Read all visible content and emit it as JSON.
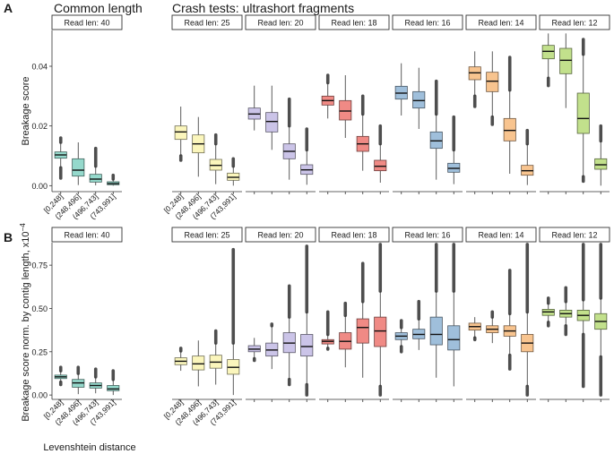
{
  "figure": {
    "panel_a_letter": "A",
    "panel_b_letter": "B",
    "common_length_title": "Common length",
    "crash_tests_title": "Crash tests: ultrashort fragments",
    "x_axis_label": "Levenshtein distance"
  },
  "chart_data": [
    {
      "type": "boxplot",
      "panel": "A",
      "ylabel": "Breakage score",
      "ylim": [
        -0.002,
        0.052
      ],
      "yticks": [
        0.0,
        0.02,
        0.04
      ],
      "ytick_labels": [
        "0.00",
        "0.02",
        "0.04"
      ],
      "categories": [
        "[0,248]",
        "(248,496]",
        "(496,743]",
        "(743,991]"
      ],
      "facets": [
        {
          "label": "Read len: 40",
          "color": "#95D9CC",
          "boxes": [
            {
              "q1": 0.0092,
              "median": 0.0103,
              "q3": 0.0113,
              "lo": 0.006,
              "hi": 0.0145,
              "olo": 0.0025,
              "ohi": 0.016
            },
            {
              "q1": 0.0032,
              "median": 0.0052,
              "q3": 0.009,
              "lo": 0.0002,
              "hi": 0.0145,
              "olo": null,
              "ohi": null
            },
            {
              "q1": 0.0012,
              "median": 0.0022,
              "q3": 0.0038,
              "lo": 0.0001,
              "hi": 0.0065,
              "olo": null,
              "ohi": 0.0125
            },
            {
              "q1": 0.0003,
              "median": 0.0007,
              "q3": 0.0013,
              "lo": 0.0,
              "hi": 0.0022,
              "olo": null,
              "ohi": 0.0035
            }
          ]
        },
        {
          "label": "Read len: 25",
          "color": "#FBF6BC",
          "boxes": [
            {
              "q1": 0.0155,
              "median": 0.018,
              "q3": 0.02,
              "lo": 0.01,
              "hi": 0.0265,
              "olo": 0.0085,
              "ohi": null
            },
            {
              "q1": 0.011,
              "median": 0.014,
              "q3": 0.017,
              "lo": 0.003,
              "hi": 0.023,
              "olo": null,
              "ohi": null
            },
            {
              "q1": 0.0052,
              "median": 0.0068,
              "q3": 0.0088,
              "lo": 0.0005,
              "hi": 0.014,
              "olo": null,
              "ohi": 0.017
            },
            {
              "q1": 0.0018,
              "median": 0.0028,
              "q3": 0.0042,
              "lo": 0.0,
              "hi": 0.0065,
              "olo": null,
              "ohi": 0.009
            }
          ]
        },
        {
          "label": "Read len: 20",
          "color": "#CBC4E8",
          "boxes": [
            {
              "q1": 0.0223,
              "median": 0.024,
              "q3": 0.026,
              "lo": 0.0185,
              "hi": 0.0335,
              "olo": null,
              "ohi": null
            },
            {
              "q1": 0.018,
              "median": 0.0215,
              "q3": 0.0245,
              "lo": 0.012,
              "hi": 0.0335,
              "olo": null,
              "ohi": null
            },
            {
              "q1": 0.009,
              "median": 0.0115,
              "q3": 0.014,
              "lo": 0.002,
              "hi": 0.02,
              "olo": null,
              "ohi": 0.029
            },
            {
              "q1": 0.0038,
              "median": 0.0053,
              "q3": 0.007,
              "lo": 0.0003,
              "hi": 0.012,
              "olo": null,
              "ohi": 0.019
            }
          ]
        },
        {
          "label": "Read len: 18",
          "color": "#F08A85",
          "boxes": [
            {
              "q1": 0.027,
              "median": 0.0285,
              "q3": 0.03,
              "lo": 0.0225,
              "hi": 0.0345,
              "olo": null,
              "ohi": 0.037
            },
            {
              "q1": 0.022,
              "median": 0.025,
              "q3": 0.0285,
              "lo": 0.016,
              "hi": 0.037,
              "olo": null,
              "ohi": null
            },
            {
              "q1": 0.0115,
              "median": 0.014,
              "q3": 0.0165,
              "lo": 0.005,
              "hi": 0.024,
              "olo": null,
              "ohi": 0.03
            },
            {
              "q1": 0.005,
              "median": 0.0065,
              "q3": 0.0085,
              "lo": 0.001,
              "hi": 0.014,
              "olo": null,
              "ohi": 0.02
            }
          ]
        },
        {
          "label": "Read len: 16",
          "color": "#9FBFDB",
          "boxes": [
            {
              "q1": 0.029,
              "median": 0.031,
              "q3": 0.0333,
              "lo": 0.0235,
              "hi": 0.041,
              "olo": null,
              "ohi": null
            },
            {
              "q1": 0.026,
              "median": 0.0285,
              "q3": 0.0315,
              "lo": 0.019,
              "hi": 0.0395,
              "olo": null,
              "ohi": null
            },
            {
              "q1": 0.0125,
              "median": 0.015,
              "q3": 0.018,
              "lo": 0.002,
              "hi": 0.024,
              "olo": null,
              "ohi": 0.035
            },
            {
              "q1": 0.0045,
              "median": 0.0058,
              "q3": 0.0075,
              "lo": 0.0005,
              "hi": 0.012,
              "olo": null,
              "ohi": 0.023
            }
          ]
        },
        {
          "label": "Read len: 14",
          "color": "#F8C48F",
          "boxes": [
            {
              "q1": 0.0355,
              "median": 0.0378,
              "q3": 0.0398,
              "lo": 0.03,
              "hi": 0.045,
              "olo": 0.0265,
              "ohi": null
            },
            {
              "q1": 0.0315,
              "median": 0.035,
              "q3": 0.038,
              "lo": 0.023,
              "hi": 0.045,
              "olo": 0.0205,
              "ohi": null
            },
            {
              "q1": 0.015,
              "median": 0.0185,
              "q3": 0.0225,
              "lo": 0.004,
              "hi": 0.032,
              "olo": null,
              "ohi": 0.043
            },
            {
              "q1": 0.0035,
              "median": 0.005,
              "q3": 0.0068,
              "lo": 0.0002,
              "hi": 0.014,
              "olo": null,
              "ohi": 0.0185
            }
          ]
        },
        {
          "label": "Read len: 12",
          "color": "#C2E08C",
          "boxes": [
            {
              "q1": 0.0425,
              "median": 0.045,
              "q3": 0.047,
              "lo": 0.036,
              "hi": 0.051,
              "olo": 0.0335,
              "ohi": null
            },
            {
              "q1": 0.0375,
              "median": 0.042,
              "q3": 0.046,
              "lo": 0.026,
              "hi": 0.051,
              "olo": null,
              "ohi": null
            },
            {
              "q1": 0.0175,
              "median": 0.0225,
              "q3": 0.031,
              "lo": 0.003,
              "hi": 0.044,
              "olo": 0.0015,
              "ohi": 0.049
            },
            {
              "q1": 0.0055,
              "median": 0.007,
              "q3": 0.009,
              "lo": 0.0,
              "hi": 0.015,
              "olo": null,
              "ohi": 0.02
            }
          ]
        }
      ]
    },
    {
      "type": "boxplot",
      "panel": "B",
      "ylabel": "Breakage score norm. by contig length, x10",
      "ylabel_exponent": "−4",
      "ylim": [
        -0.02,
        0.88
      ],
      "yticks": [
        0.0,
        0.25,
        0.5,
        0.75
      ],
      "ytick_labels": [
        "0.00",
        "0.25",
        "0.50",
        "0.75"
      ],
      "categories": [
        "[0,248]",
        "(248,496]",
        "(496,743]",
        "(743,991]"
      ],
      "facets": [
        {
          "label": "Read len: 40",
          "color": "#95D9CC",
          "boxes": [
            {
              "q1": 0.095,
              "median": 0.105,
              "q3": 0.115,
              "lo": 0.075,
              "hi": 0.14,
              "olo": 0.06,
              "ohi": 0.16
            },
            {
              "q1": 0.045,
              "median": 0.07,
              "q3": 0.09,
              "lo": 0.005,
              "hi": 0.125,
              "olo": null,
              "ohi": 0.16
            },
            {
              "q1": 0.04,
              "median": 0.055,
              "q3": 0.07,
              "lo": 0.01,
              "hi": 0.105,
              "olo": null,
              "ohi": 0.15
            },
            {
              "q1": 0.025,
              "median": 0.035,
              "q3": 0.055,
              "lo": 0.0,
              "hi": 0.09,
              "olo": null,
              "ohi": 0.14
            }
          ]
        },
        {
          "label": "Read len: 25",
          "color": "#FBF6BC",
          "boxes": [
            {
              "q1": 0.175,
              "median": 0.195,
              "q3": 0.215,
              "lo": 0.14,
              "hi": 0.255,
              "olo": null,
              "ohi": 0.27
            },
            {
              "q1": 0.145,
              "median": 0.18,
              "q3": 0.225,
              "lo": 0.05,
              "hi": 0.315,
              "olo": null,
              "ohi": null
            },
            {
              "q1": 0.155,
              "median": 0.19,
              "q3": 0.23,
              "lo": 0.06,
              "hi": 0.3,
              "olo": null,
              "ohi": 0.37
            },
            {
              "q1": 0.12,
              "median": 0.16,
              "q3": 0.205,
              "lo": 0.0,
              "hi": 0.3,
              "olo": null,
              "ohi": 0.84
            }
          ]
        },
        {
          "label": "Read len: 20",
          "color": "#CBC4E8",
          "boxes": [
            {
              "q1": 0.25,
              "median": 0.265,
              "q3": 0.285,
              "lo": 0.21,
              "hi": 0.33,
              "olo": 0.2,
              "ohi": null
            },
            {
              "q1": 0.225,
              "median": 0.26,
              "q3": 0.3,
              "lo": 0.15,
              "hi": 0.4,
              "olo": null,
              "ohi": 0.41
            },
            {
              "q1": 0.245,
              "median": 0.3,
              "q3": 0.36,
              "lo": 0.09,
              "hi": 0.45,
              "olo": 0.06,
              "ohi": 0.63
            },
            {
              "q1": 0.225,
              "median": 0.28,
              "q3": 0.35,
              "lo": 0.06,
              "hi": 0.48,
              "olo": 0.0,
              "ohi": 0.86
            }
          ]
        },
        {
          "label": "Read len: 18",
          "color": "#F08A85",
          "boxes": [
            {
              "q1": 0.295,
              "median": 0.31,
              "q3": 0.32,
              "lo": 0.27,
              "hi": 0.35,
              "olo": 0.265,
              "ohi": 0.48
            },
            {
              "q1": 0.265,
              "median": 0.31,
              "q3": 0.36,
              "lo": 0.16,
              "hi": 0.46,
              "olo": null,
              "ohi": 0.53
            },
            {
              "q1": 0.3,
              "median": 0.39,
              "q3": 0.44,
              "lo": 0.1,
              "hi": 0.54,
              "olo": null,
              "ohi": 0.76
            },
            {
              "q1": 0.28,
              "median": 0.37,
              "q3": 0.45,
              "lo": 0.05,
              "hi": 0.6,
              "olo": 0.0,
              "ohi": 0.87
            }
          ]
        },
        {
          "label": "Read len: 16",
          "color": "#9FBFDB",
          "boxes": [
            {
              "q1": 0.32,
              "median": 0.34,
              "q3": 0.36,
              "lo": 0.28,
              "hi": 0.39,
              "olo": 0.25,
              "ohi": 0.43
            },
            {
              "q1": 0.325,
              "median": 0.35,
              "q3": 0.38,
              "lo": 0.26,
              "hi": 0.44,
              "olo": null,
              "ohi": 0.54
            },
            {
              "q1": 0.29,
              "median": 0.35,
              "q3": 0.45,
              "lo": 0.1,
              "hi": 0.6,
              "olo": null,
              "ohi": 0.87
            },
            {
              "q1": 0.26,
              "median": 0.32,
              "q3": 0.4,
              "lo": 0.05,
              "hi": 0.6,
              "olo": null,
              "ohi": 0.87
            }
          ]
        },
        {
          "label": "Read len: 14",
          "color": "#F8C48F",
          "boxes": [
            {
              "q1": 0.375,
              "median": 0.395,
              "q3": 0.415,
              "lo": 0.33,
              "hi": 0.45,
              "olo": 0.32,
              "ohi": null
            },
            {
              "q1": 0.36,
              "median": 0.38,
              "q3": 0.4,
              "lo": 0.3,
              "hi": 0.45,
              "olo": null,
              "ohi": 0.48
            },
            {
              "q1": 0.34,
              "median": 0.37,
              "q3": 0.4,
              "lo": 0.23,
              "hi": 0.47,
              "olo": 0.15,
              "ohi": 0.72
            },
            {
              "q1": 0.25,
              "median": 0.3,
              "q3": 0.35,
              "lo": 0.05,
              "hi": 0.48,
              "olo": 0.0,
              "ohi": 0.87
            }
          ]
        },
        {
          "label": "Read len: 12",
          "color": "#C2E08C",
          "boxes": [
            {
              "q1": 0.46,
              "median": 0.48,
              "q3": 0.495,
              "lo": 0.42,
              "hi": 0.53,
              "olo": 0.4,
              "ohi": 0.56
            },
            {
              "q1": 0.45,
              "median": 0.47,
              "q3": 0.49,
              "lo": 0.4,
              "hi": 0.54,
              "olo": 0.35,
              "ohi": 0.62
            },
            {
              "q1": 0.43,
              "median": 0.46,
              "q3": 0.49,
              "lo": 0.35,
              "hi": 0.55,
              "olo": 0.05,
              "ohi": 0.87
            },
            {
              "q1": 0.38,
              "median": 0.425,
              "q3": 0.47,
              "lo": 0.22,
              "hi": 0.56,
              "olo": 0.0,
              "ohi": 0.87
            }
          ]
        }
      ]
    }
  ]
}
